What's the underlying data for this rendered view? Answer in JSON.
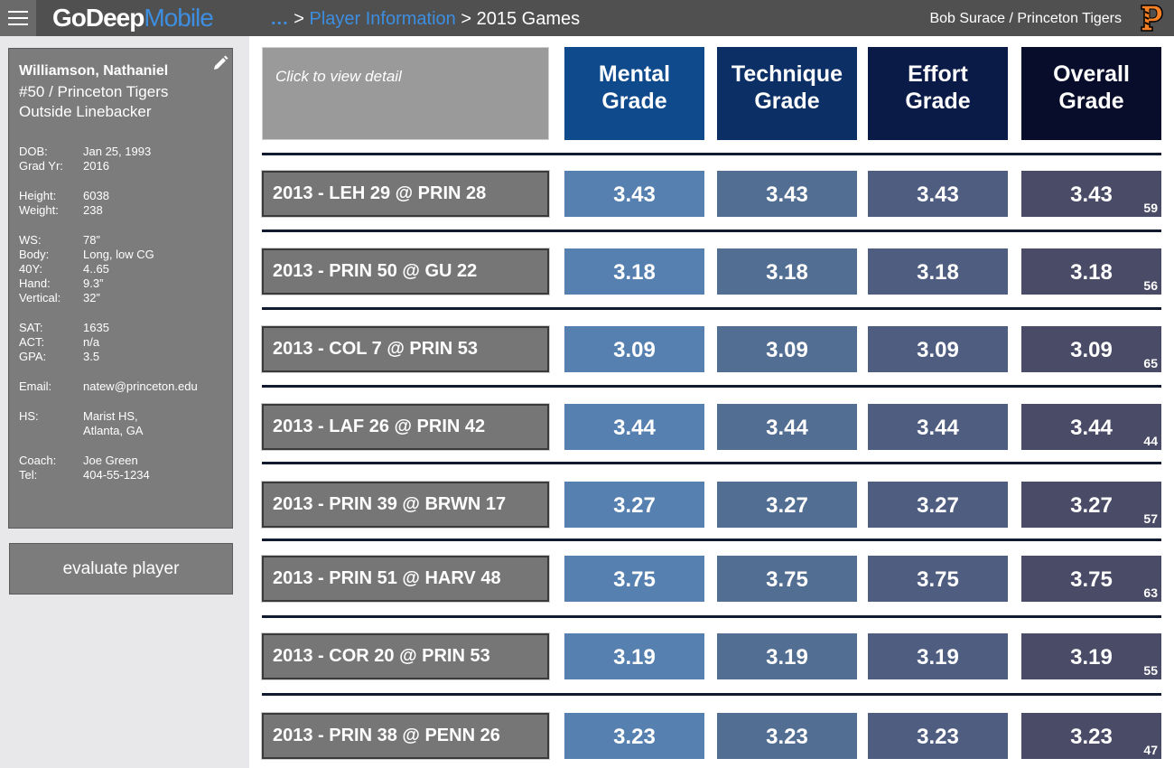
{
  "header": {
    "logo_bold": "GoDeep",
    "logo_light": "Mobile",
    "crumb_dots": "...",
    "crumb_sep1": ">",
    "crumb_link": "Player Information",
    "crumb_sep2": ">",
    "crumb_current": "2015 Games",
    "user": "Bob Surace / Princeton Tigers"
  },
  "player": {
    "name": "Williamson, Nathaniel",
    "number_team": "#50 / Princeton Tigers",
    "position": "Outside Linebacker",
    "info": [
      {
        "k": "DOB:",
        "v": "Jan 25, 1993"
      },
      {
        "k": "Grad Yr:",
        "v": "2016"
      },
      {
        "k": "Height:",
        "v": "6038"
      },
      {
        "k": "Weight:",
        "v": "238"
      },
      {
        "k": "WS:",
        "v": "78”"
      },
      {
        "k": "Body:",
        "v": "Long, low CG"
      },
      {
        "k": "40Y:",
        "v": "4..65"
      },
      {
        "k": "Hand:",
        "v": "9.3”"
      },
      {
        "k": "Vertical:",
        "v": "32”"
      },
      {
        "k": "SAT:",
        "v": "1635"
      },
      {
        "k": "ACT:",
        "v": "n/a"
      },
      {
        "k": "GPA:",
        "v": "3.5"
      },
      {
        "k": "Email:",
        "v": "natew@princeton.edu"
      },
      {
        "k": "HS:",
        "v": "Marist HS,"
      },
      {
        "k": "",
        "v": "Atlanta, GA"
      },
      {
        "k": "Coach:",
        "v": "Joe Green"
      },
      {
        "k": "Tel:",
        "v": "404-55-1234"
      }
    ]
  },
  "evaluate_label": "evaluate player",
  "table": {
    "detail_hint": "Click to view detail",
    "columns": [
      {
        "line1": "Mental",
        "line2": "Grade"
      },
      {
        "line1": "Technique",
        "line2": "Grade"
      },
      {
        "line1": "Effort",
        "line2": "Grade"
      },
      {
        "line1": "Overall",
        "line2": "Grade"
      }
    ],
    "rows": [
      {
        "game": "2013 - LEH 29 @ PRIN 28",
        "mental": "3.43",
        "technique": "3.43",
        "effort": "3.43",
        "overall": "3.43",
        "rank": "59"
      },
      {
        "game": "2013 - PRIN 50 @ GU 22",
        "mental": "3.18",
        "technique": "3.18",
        "effort": "3.18",
        "overall": "3.18",
        "rank": "56"
      },
      {
        "game": "2013 - COL 7 @ PRIN 53",
        "mental": "3.09",
        "technique": "3.09",
        "effort": "3.09",
        "overall": "3.09",
        "rank": "65"
      },
      {
        "game": "2013 - LAF 26 @ PRIN 42",
        "mental": "3.44",
        "technique": "3.44",
        "effort": "3.44",
        "overall": "3.44",
        "rank": "44"
      },
      {
        "game": "2013 - PRIN 39 @ BRWN 17",
        "mental": "3.27",
        "technique": "3.27",
        "effort": "3.27",
        "overall": "3.27",
        "rank": "57"
      },
      {
        "game": "2013 - PRIN 51 @ HARV 48",
        "mental": "3.75",
        "technique": "3.75",
        "effort": "3.75",
        "overall": "3.75",
        "rank": "63"
      },
      {
        "game": "2013 - COR 20 @ PRIN 53",
        "mental": "3.19",
        "technique": "3.19",
        "effort": "3.19",
        "overall": "3.19",
        "rank": "55"
      },
      {
        "game": "2013 - PRIN 38 @ PENN 26",
        "mental": "3.23",
        "technique": "3.23",
        "effort": "3.23",
        "overall": "3.23",
        "rank": "47"
      }
    ]
  },
  "colors": {
    "header_mental": "#0f4a8c",
    "header_technique": "#0c2f66",
    "header_effort": "#0a1b48",
    "header_overall": "#070d2a",
    "cell_mental": "#5680b0",
    "cell_technique": "#526e92",
    "cell_effort": "#4f5d80",
    "cell_overall": "#4a4b66",
    "accent": "#3d8ee0"
  },
  "icons": {
    "menu": "hamburger-menu-icon",
    "edit": "pencil-icon",
    "team_logo": "princeton-p-logo"
  }
}
